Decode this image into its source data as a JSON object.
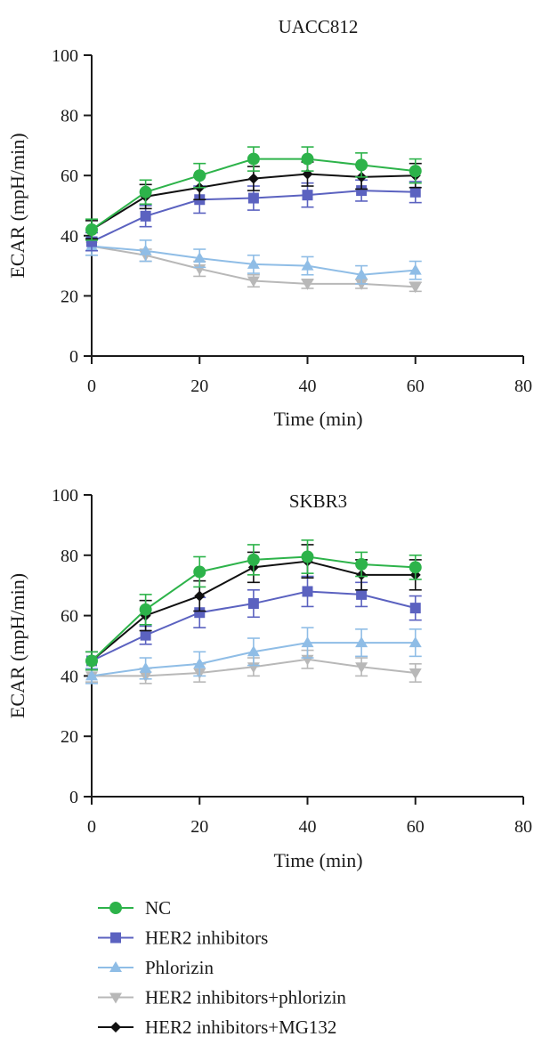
{
  "chart_data": [
    {
      "type": "line",
      "title": "UACC812",
      "xlabel": "Time (min)",
      "ylabel": "ECAR (mpH/min)",
      "xlim": [
        0,
        80
      ],
      "ylim": [
        0,
        100
      ],
      "xticks": [
        0,
        20,
        40,
        60,
        80
      ],
      "yticks": [
        0,
        20,
        40,
        60,
        80,
        100
      ],
      "grid": false,
      "x": [
        0,
        10,
        20,
        30,
        40,
        50,
        60
      ],
      "series": [
        {
          "name": "NC",
          "values": [
            42,
            54.5,
            60,
            65.5,
            65.5,
            63.5,
            61.5
          ],
          "errors": [
            3.5,
            4,
            4,
            4,
            4,
            4,
            4
          ]
        },
        {
          "name": "HER2 inhibitors",
          "values": [
            38,
            46.5,
            52,
            52.5,
            53.5,
            55,
            54.5
          ],
          "errors": [
            3,
            3.5,
            4.5,
            4,
            4,
            3.5,
            3.5
          ]
        },
        {
          "name": "Phlorizin",
          "values": [
            36.5,
            35,
            32.5,
            30.5,
            30,
            27,
            28.5
          ],
          "errors": [
            3,
            3.5,
            3,
            3,
            3,
            3,
            3
          ]
        },
        {
          "name": "HER2 inhibitors+phlorizin",
          "values": [
            36.5,
            33.5,
            29,
            25,
            24,
            24,
            23
          ],
          "errors": [
            3,
            2,
            2.5,
            2,
            1.5,
            1.5,
            1.5
          ]
        },
        {
          "name": "HER2 inhibitors+MG132",
          "values": [
            42,
            53,
            56,
            59,
            60.5,
            59.5,
            60
          ],
          "errors": [
            3,
            4,
            4,
            4,
            4,
            4,
            4
          ]
        }
      ]
    },
    {
      "type": "line",
      "title": "SKBR3",
      "xlabel": "Time (min)",
      "ylabel": "ECAR (mpH/min)",
      "xlim": [
        0,
        80
      ],
      "ylim": [
        0,
        100
      ],
      "xticks": [
        0,
        20,
        40,
        60,
        80
      ],
      "yticks": [
        0,
        20,
        40,
        60,
        80,
        100
      ],
      "grid": false,
      "x": [
        0,
        10,
        20,
        30,
        40,
        50,
        60
      ],
      "series": [
        {
          "name": "NC",
          "values": [
            45,
            62,
            74.5,
            78.5,
            79.5,
            77,
            76
          ],
          "errors": [
            3,
            5,
            5,
            5,
            5.5,
            4,
            4
          ]
        },
        {
          "name": "HER2 inhibitors",
          "values": [
            45,
            53.5,
            61,
            64,
            68,
            67,
            62.5
          ],
          "errors": [
            3,
            3,
            5,
            4.5,
            5,
            4,
            4
          ]
        },
        {
          "name": "Phlorizin",
          "values": [
            40,
            42.5,
            44,
            48,
            51,
            51,
            51
          ],
          "errors": [
            2.5,
            3.5,
            4,
            4.5,
            5,
            4.5,
            4.5
          ]
        },
        {
          "name": "HER2 inhibitors+phlorizin",
          "values": [
            40,
            40,
            41,
            43,
            45.5,
            43,
            41
          ],
          "errors": [
            2,
            2.5,
            3,
            3,
            3,
            3,
            3
          ]
        },
        {
          "name": "HER2 inhibitors+MG132",
          "values": [
            45,
            60,
            66.5,
            76,
            78,
            73.5,
            73.5
          ],
          "errors": [
            3,
            5,
            5,
            5,
            5.5,
            5,
            5
          ]
        }
      ]
    }
  ],
  "legend": {
    "placement": "bottom",
    "entries": [
      {
        "name": "NC",
        "color": "#2db34a",
        "marker": "circle"
      },
      {
        "name": "HER2 inhibitors",
        "color": "#5b62c0",
        "marker": "square"
      },
      {
        "name": "Phlorizin",
        "color": "#8fbde6",
        "marker": "triangle-up"
      },
      {
        "name": "HER2 inhibitors+phlorizin",
        "color": "#b8b8b8",
        "marker": "triangle-down"
      },
      {
        "name": "HER2 inhibitors+MG132",
        "color": "#111111",
        "marker": "diamond"
      }
    ]
  }
}
